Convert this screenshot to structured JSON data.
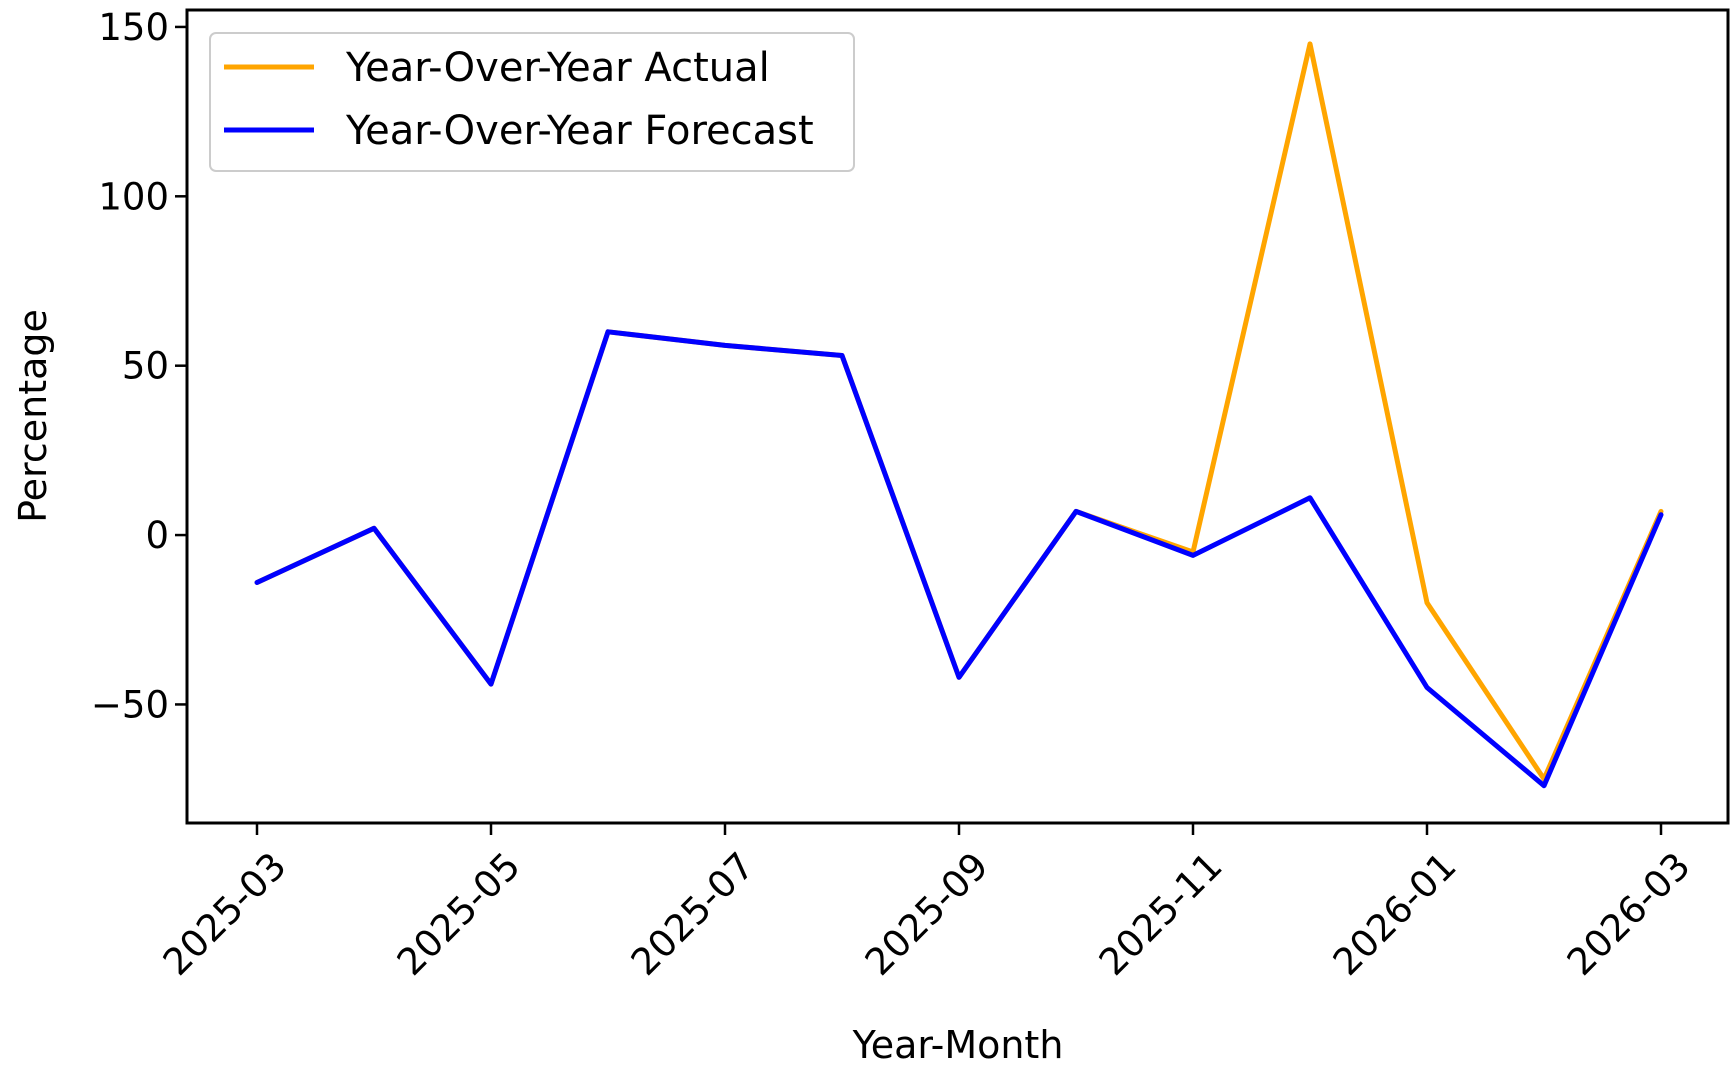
{
  "chart_data": {
    "type": "line",
    "title": "",
    "xlabel": "Year-Month",
    "ylabel": "Percentage",
    "x": [
      "2025-03",
      "2025-04",
      "2025-05",
      "2025-06",
      "2025-07",
      "2025-08",
      "2025-09",
      "2025-10",
      "2025-11",
      "2025-12",
      "2026-01",
      "2026-02",
      "2026-03"
    ],
    "x_ticks": [
      "2025-03",
      "2025-05",
      "2025-07",
      "2025-09",
      "2025-11",
      "2026-01",
      "2026-03"
    ],
    "y_ticks": [
      -50,
      0,
      50,
      100,
      150
    ],
    "y_tick_labels": [
      "−50",
      "0",
      "50",
      "100",
      "150"
    ],
    "ylim": [
      -85,
      155
    ],
    "grid": false,
    "legend_position": "top-left",
    "series": [
      {
        "name": "Year-Over-Year Actual",
        "color": "#ffa500",
        "values": [
          -14,
          2,
          -44,
          60,
          56,
          53,
          -42,
          7,
          -5,
          145,
          -20,
          -72,
          7
        ]
      },
      {
        "name": "Year-Over-Year Forecast",
        "color": "#0000ff",
        "values": [
          -14,
          2,
          -44,
          60,
          56,
          53,
          -42,
          7,
          -6,
          11,
          -45,
          -74,
          6
        ]
      }
    ]
  }
}
